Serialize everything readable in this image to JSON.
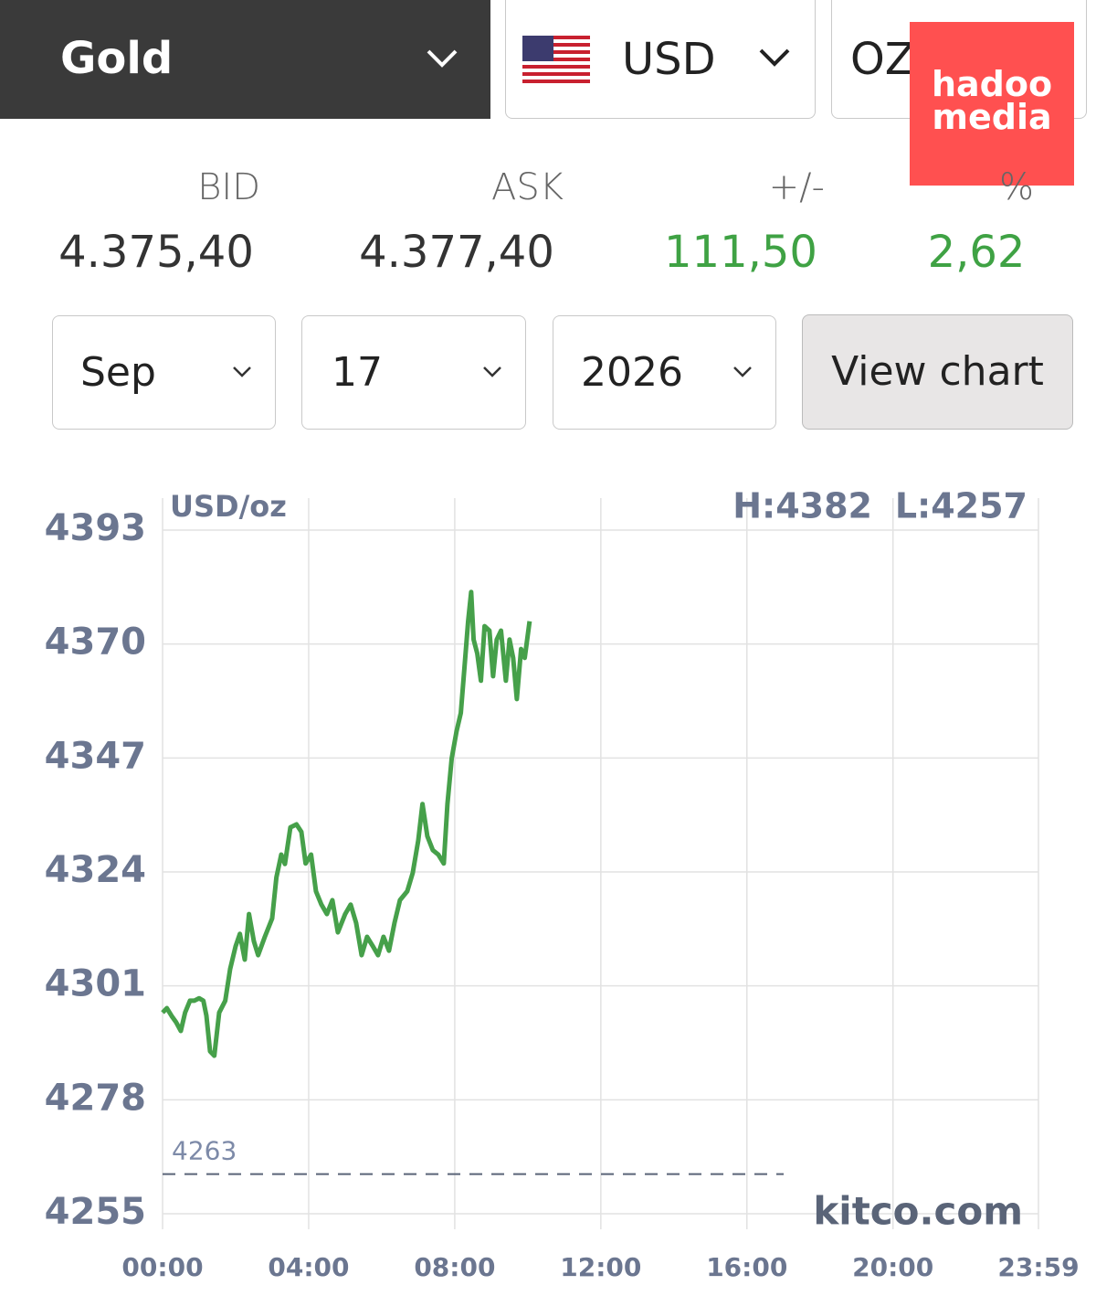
{
  "controls": {
    "metal": "Gold",
    "currency": "USD",
    "unit": "OZ",
    "month": "Sep",
    "day": "17",
    "year": "2026",
    "button": "View chart"
  },
  "quote": {
    "headers": [
      "BID",
      "ASK",
      "+/-",
      "%"
    ],
    "values": [
      "4.375,40",
      "4.377,40",
      "111,50",
      "2,62"
    ]
  },
  "watermark": [
    "hadoo",
    "media"
  ],
  "chart_data": {
    "type": "line",
    "unit_label": "USD/oz",
    "high_label": "H:4382",
    "low_label": "L:4257",
    "source": "kitco.com",
    "reference_line": 4263,
    "grid": true,
    "xlim": [
      0,
      1439
    ],
    "xticks": [
      {
        "value": 0,
        "label": "00:00"
      },
      {
        "value": 240,
        "label": "04:00"
      },
      {
        "value": 480,
        "label": "08:00"
      },
      {
        "value": 720,
        "label": "12:00"
      },
      {
        "value": 960,
        "label": "16:00"
      },
      {
        "value": 1200,
        "label": "20:00"
      },
      {
        "value": 1439,
        "label": "23:59"
      }
    ],
    "ylim": [
      4255,
      4393
    ],
    "yticks": [
      4255,
      4278,
      4301,
      4324,
      4347,
      4370,
      4393
    ],
    "x": [
      0,
      7,
      15,
      22,
      30,
      37,
      45,
      52,
      60,
      67,
      72,
      78,
      85,
      93,
      103,
      111,
      120,
      127,
      135,
      142,
      150,
      157,
      168,
      180,
      187,
      195,
      201,
      210,
      220,
      228,
      235,
      244,
      252,
      261,
      270,
      279,
      288,
      300,
      309,
      318,
      327,
      336,
      345,
      354,
      363,
      372,
      381,
      390,
      402,
      411,
      420,
      427,
      435,
      444,
      453,
      462,
      468,
      475,
      483,
      490,
      496,
      502,
      507,
      511,
      517,
      523,
      529,
      537,
      543,
      549,
      556,
      564,
      570,
      576,
      582,
      589,
      595,
      603
    ],
    "series": [
      {
        "name": "Gold",
        "color": "#46a04a",
        "values": [
          4295.6,
          4296.5,
          4294.9,
          4293.7,
          4291.9,
          4295.6,
          4298,
          4298,
          4298.5,
          4298,
          4295,
          4287.8,
          4286.9,
          4295.6,
          4298,
          4304.4,
          4309,
          4311.5,
          4306.3,
          4315.5,
          4310,
          4307.2,
          4310.9,
          4314.6,
          4322.9,
          4327.5,
          4325.6,
          4333,
          4333.6,
          4332.1,
          4325.7,
          4327.5,
          4320.1,
          4317.4,
          4315.5,
          4318.3,
          4311.8,
          4315.5,
          4317.4,
          4313.7,
          4307.2,
          4310.9,
          4309.1,
          4307.2,
          4310.9,
          4308.1,
          4313.7,
          4318.3,
          4320.1,
          4323.8,
          4330.3,
          4337.7,
          4331.2,
          4328.4,
          4327.5,
          4325.7,
          4337.7,
          4346.9,
          4352.4,
          4356.1,
          4365.3,
          4374.6,
          4380.5,
          4370.9,
          4368.1,
          4362.6,
          4373.6,
          4372.7,
          4363.5,
          4370.9,
          4372.7,
          4362.6,
          4370.9,
          4367.2,
          4358.9,
          4369,
          4367.2,
          4374.6
        ]
      }
    ]
  }
}
